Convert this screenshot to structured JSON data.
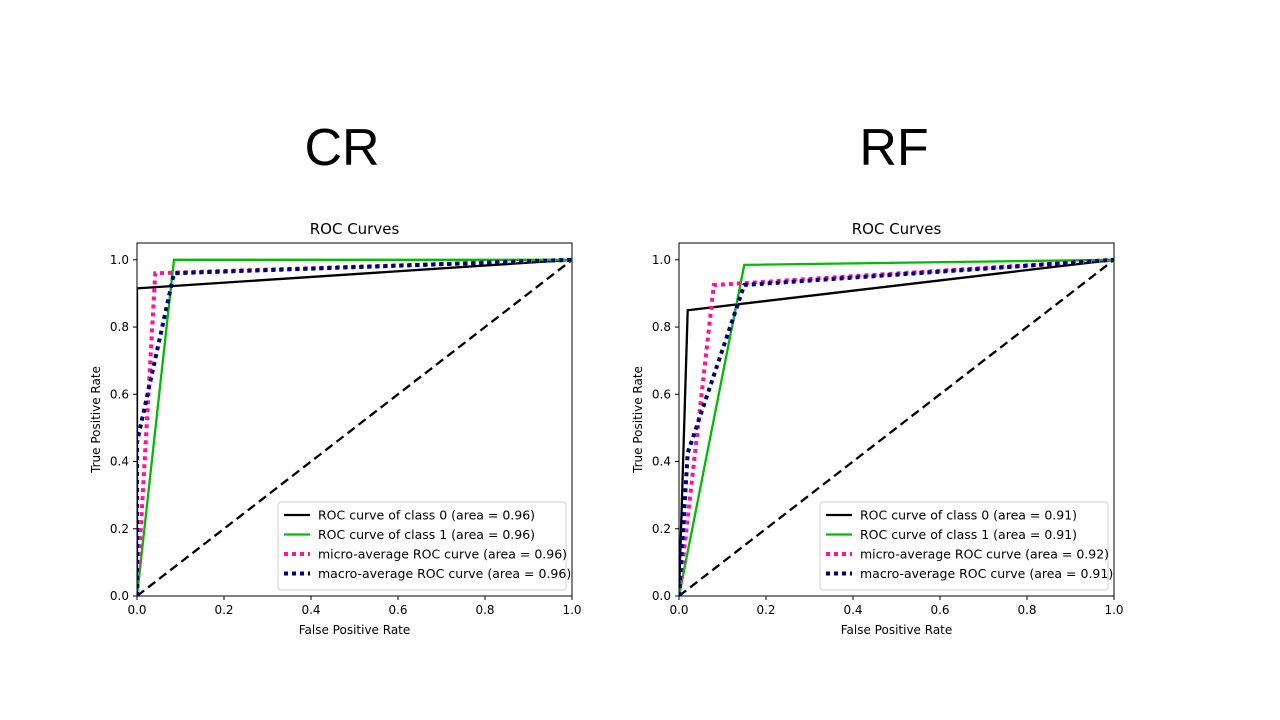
{
  "headings": [
    "CR",
    "RF"
  ],
  "chart_data": [
    {
      "type": "line",
      "panel_title": "CR",
      "title": "ROC Curves",
      "xlabel": "False Positive Rate",
      "ylabel": "True Positive Rate",
      "xlim": [
        0.0,
        1.0
      ],
      "ylim": [
        0.0,
        1.05
      ],
      "xticks": [
        0.0,
        0.2,
        0.4,
        0.6,
        0.8,
        1.0
      ],
      "yticks": [
        0.0,
        0.2,
        0.4,
        0.6,
        0.8,
        1.0
      ],
      "xtick_labels": [
        "0.0",
        "0.2",
        "0.4",
        "0.6",
        "0.8",
        "1.0"
      ],
      "ytick_labels": [
        "0.0",
        "0.2",
        "0.4",
        "0.6",
        "0.8",
        "1.0"
      ],
      "legend_position": "lower-right",
      "series": [
        {
          "name": "ROC curve of class 0 (area = 0.96)",
          "color": "#000000",
          "style": "solid",
          "x": [
            0.0,
            0.0,
            1.0
          ],
          "y": [
            0.0,
            0.915,
            1.0
          ]
        },
        {
          "name": "ROC curve of class 1 (area = 0.96)",
          "color": "#00bb00",
          "style": "solid",
          "x": [
            0.0,
            0.085,
            1.0
          ],
          "y": [
            0.0,
            1.0,
            1.0
          ]
        },
        {
          "name": "micro-average ROC curve (area = 0.96)",
          "color": "#ff1493",
          "style": "dotted",
          "x": [
            0.0,
            0.042,
            1.0
          ],
          "y": [
            0.0,
            0.96,
            1.0
          ]
        },
        {
          "name": "macro-average ROC curve (area = 0.96)",
          "color": "#000080",
          "style": "dotted",
          "x": [
            0.0,
            0.0,
            0.085,
            1.0
          ],
          "y": [
            0.0,
            0.457,
            0.96,
            1.0
          ]
        }
      ],
      "diagonal": {
        "x": [
          0.0,
          1.0
        ],
        "y": [
          0.0,
          1.0
        ],
        "color": "#000000",
        "style": "dashed"
      }
    },
    {
      "type": "line",
      "panel_title": "RF",
      "title": "ROC Curves",
      "xlabel": "False Positive Rate",
      "ylabel": "True Positive Rate",
      "xlim": [
        0.0,
        1.0
      ],
      "ylim": [
        0.0,
        1.05
      ],
      "xticks": [
        0.0,
        0.2,
        0.4,
        0.6,
        0.8,
        1.0
      ],
      "yticks": [
        0.0,
        0.2,
        0.4,
        0.6,
        0.8,
        1.0
      ],
      "xtick_labels": [
        "0.0",
        "0.2",
        "0.4",
        "0.6",
        "0.8",
        "1.0"
      ],
      "ytick_labels": [
        "0.0",
        "0.2",
        "0.4",
        "0.6",
        "0.8",
        "1.0"
      ],
      "legend_position": "lower-right",
      "series": [
        {
          "name": "ROC curve of class 0 (area = 0.91)",
          "color": "#000000",
          "style": "solid",
          "x": [
            0.0,
            0.02,
            1.0
          ],
          "y": [
            0.0,
            0.85,
            1.0
          ]
        },
        {
          "name": "ROC curve of class 1 (area = 0.91)",
          "color": "#00bb00",
          "style": "solid",
          "x": [
            0.0,
            0.15,
            1.0
          ],
          "y": [
            0.0,
            0.985,
            1.0
          ]
        },
        {
          "name": "micro-average ROC curve (area = 0.92)",
          "color": "#ff1493",
          "style": "dotted",
          "x": [
            0.0,
            0.08,
            1.0
          ],
          "y": [
            0.0,
            0.925,
            1.0
          ]
        },
        {
          "name": "macro-average ROC curve (area = 0.91)",
          "color": "#000080",
          "style": "dotted",
          "x": [
            0.0,
            0.02,
            0.15,
            1.0
          ],
          "y": [
            0.0,
            0.425,
            0.925,
            1.0
          ]
        }
      ],
      "diagonal": {
        "x": [
          0.0,
          1.0
        ],
        "y": [
          0.0,
          1.0
        ],
        "color": "#000000",
        "style": "dashed"
      }
    }
  ]
}
